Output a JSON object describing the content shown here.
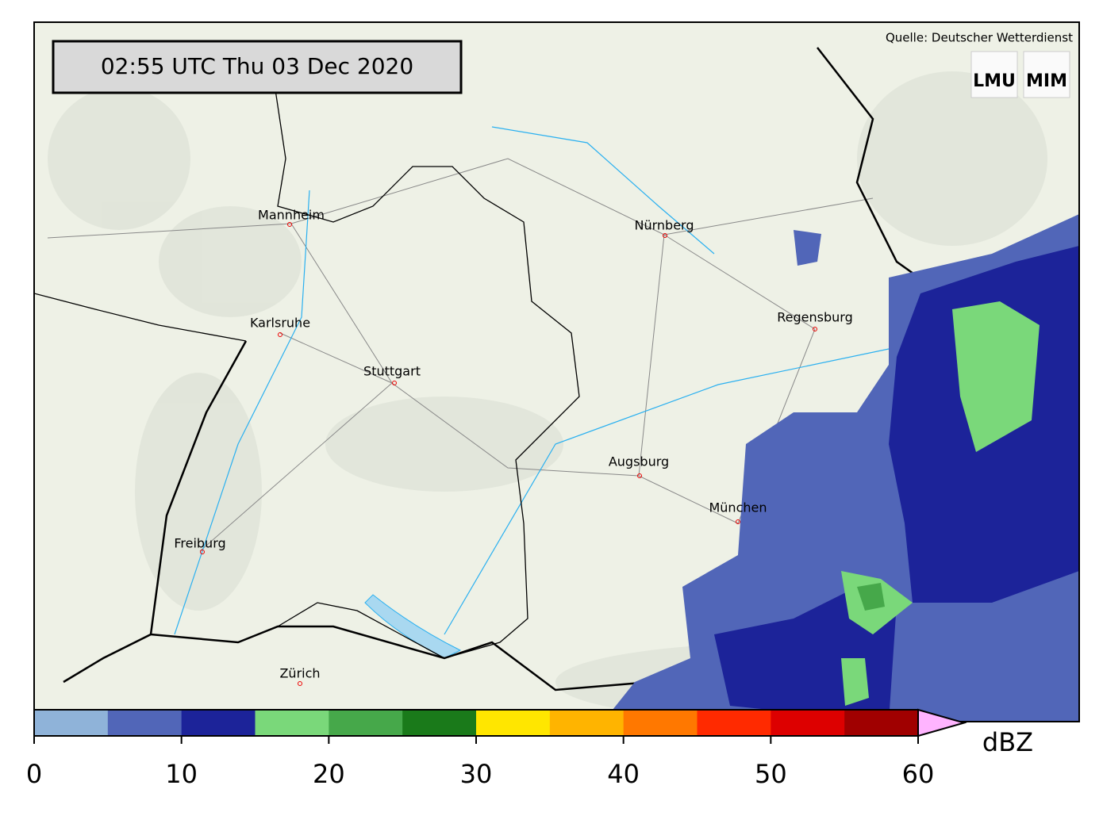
{
  "header": {
    "timestamp": "02:55 UTC  Thu 03 Dec 2020",
    "source": "Quelle: Deutscher Wetterdienst",
    "logos": [
      "LMU",
      "MIM"
    ]
  },
  "cities": [
    "Mannheim",
    "Nürnberg",
    "Regensburg",
    "Karlsruhe",
    "Stuttgart",
    "Augsburg",
    "München",
    "Freiburg",
    "Zürich"
  ],
  "colorbar": {
    "label": "dBZ",
    "lim": [
      0,
      60
    ],
    "ticks": [
      0,
      10,
      20,
      30,
      40,
      50,
      60
    ],
    "colors": [
      "#8fb3d9",
      "#5166b8",
      "#1c2399",
      "#7ad87a",
      "#46a84a",
      "#1a7a1a",
      "#ffe600",
      "#ffb400",
      "#ff7800",
      "#ff2a00",
      "#dd0000",
      "#a00000"
    ],
    "extend_color": "#ffb4ff"
  }
}
